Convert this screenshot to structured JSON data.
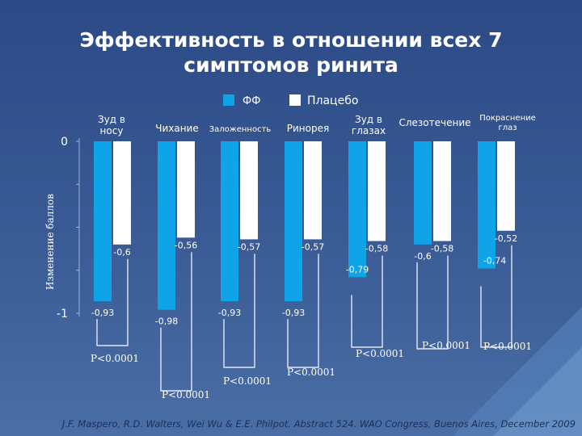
{
  "slide": {
    "title_line1": "Эффективность в отношении всех 7",
    "title_line2": "симптомов ринита",
    "citation": "J.F. Maspero, R.D. Walters, Wei Wu & E.E. Philpot. Abstract 524. WAO Congress, Buenos Aires, December 2009"
  },
  "colors": {
    "background": "#3a5b95",
    "ff_bar": "#0fa3e8",
    "placebo_bar": "#ffffff",
    "text": "#ffffff",
    "bracket": "#ffffff"
  },
  "chart_data": {
    "type": "bar",
    "ylabel": "Изменение баллов",
    "ylim": [
      -1,
      0
    ],
    "yticks": [
      {
        "value": 0,
        "label": "0"
      },
      {
        "value": -1,
        "label": "-1"
      }
    ],
    "legend_position": "top-center",
    "categories": [
      "Зуд в носу",
      "Чихание",
      "Заложенность",
      "Ринорея",
      "Зуд в глазах",
      "Слезотечение",
      "Покраснение глаз"
    ],
    "series": [
      {
        "name": "ФФ",
        "values": [
          -0.93,
          -0.98,
          -0.93,
          -0.93,
          -0.79,
          -0.6,
          -0.74
        ],
        "value_labels": [
          "-0,93",
          "-0,98",
          "-0,93",
          "-0,93",
          "-0,79",
          "-0,6",
          "-0,74"
        ]
      },
      {
        "name": "Плацебо",
        "values": [
          -0.6,
          -0.56,
          -0.57,
          -0.57,
          -0.58,
          -0.58,
          -0.52
        ],
        "value_labels": [
          "-0,6",
          "-0,56",
          "-0,57",
          "-0,57",
          "-0,58",
          "-0,58",
          "-0,52"
        ]
      }
    ],
    "p_values": [
      "P<0.0001",
      "P<0.0001",
      "P<0.0001",
      "P<0.0001",
      "P<0.0001",
      "P<0.0001",
      "P<0.0001"
    ]
  }
}
